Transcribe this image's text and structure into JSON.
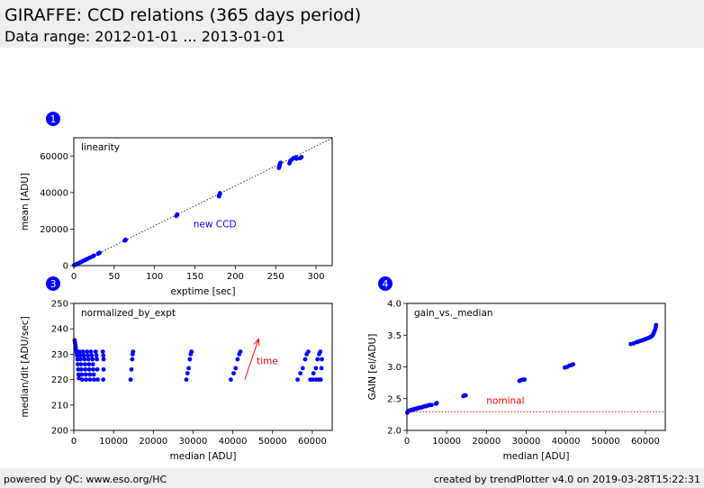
{
  "header": {
    "title": "GIRAFFE: CCD relations (365 days period)",
    "subtitle": "Data range: 2012-01-01 ... 2013-01-01"
  },
  "footer": {
    "left": "powered by QC: www.eso.org/HC",
    "right": "created by trendPlotter v4.0 on 2019-03-28T15:22:31"
  },
  "colors": {
    "points": "#0000ff",
    "annotation_red": "#ff0000",
    "badge": "#0000ff",
    "header_bg": "#eeeeee"
  },
  "chart_data": [
    {
      "id": "linearity",
      "type": "scatter",
      "badge": "1",
      "label": "linearity",
      "xlabel": "exptime [sec]",
      "ylabel": "mean [ADU]",
      "xlim": [
        0,
        320
      ],
      "ylim": [
        0,
        70000
      ],
      "xticks": [
        0,
        50,
        100,
        150,
        200,
        250,
        300
      ],
      "yticks": [
        0,
        20000,
        40000,
        60000
      ],
      "annotation": {
        "text": "new CCD",
        "x": 148,
        "y": 21000
      },
      "reference_line": {
        "x": [
          0,
          320
        ],
        "y": [
          0,
          69800
        ],
        "style": "dotted"
      },
      "points": [
        [
          0.5,
          200
        ],
        [
          1,
          300
        ],
        [
          2,
          500
        ],
        [
          3,
          700
        ],
        [
          4,
          900
        ],
        [
          5,
          1100
        ],
        [
          6,
          1300
        ],
        [
          8,
          1750
        ],
        [
          10,
          2200
        ],
        [
          12,
          2650
        ],
        [
          14,
          3050
        ],
        [
          15,
          3300
        ],
        [
          17,
          3700
        ],
        [
          20,
          4350
        ],
        [
          23,
          5000
        ],
        [
          25,
          5450
        ],
        [
          30,
          6500
        ],
        [
          32,
          7000
        ],
        [
          63,
          13700
        ],
        [
          64,
          14000
        ],
        [
          64,
          14200
        ],
        [
          127,
          27200
        ],
        [
          128,
          27700
        ],
        [
          128,
          28000
        ],
        [
          180,
          37900
        ],
        [
          180,
          38500
        ],
        [
          181,
          39200
        ],
        [
          181,
          39700
        ],
        [
          254,
          53500
        ],
        [
          255,
          54500
        ],
        [
          255,
          55500
        ],
        [
          256,
          56300
        ],
        [
          267,
          56000
        ],
        [
          268,
          57200
        ],
        [
          270,
          58000
        ],
        [
          272,
          58800
        ],
        [
          275,
          59300
        ],
        [
          276,
          58500
        ],
        [
          280,
          58800
        ],
        [
          282,
          59400
        ]
      ]
    },
    {
      "id": "normalized_by_expt",
      "type": "scatter",
      "badge": "3",
      "label": "normalized_by_expt",
      "xlabel": "median [ADU]",
      "ylabel": "median/dit [ADU/sec]",
      "xlim": [
        0,
        65000
      ],
      "ylim": [
        200,
        250
      ],
      "xticks": [
        0,
        10000,
        20000,
        30000,
        40000,
        50000,
        60000
      ],
      "yticks": [
        200,
        210,
        220,
        230,
        240,
        250
      ],
      "annotation": {
        "text": "time",
        "x": 46000,
        "y": 226
      },
      "arrow": {
        "x1": 43000,
        "y1": 220,
        "x2": 46500,
        "y2": 236
      },
      "points": [
        [
          200,
          235.5
        ],
        [
          300,
          234.5
        ],
        [
          400,
          233.5
        ],
        [
          500,
          232.5
        ],
        [
          600,
          231.5
        ],
        [
          700,
          230.5
        ],
        [
          800,
          229.5
        ],
        [
          900,
          228
        ],
        [
          1000,
          226
        ],
        [
          1100,
          224
        ],
        [
          1200,
          222
        ],
        [
          1300,
          220.5
        ],
        [
          1500,
          231
        ],
        [
          1600,
          229.5
        ],
        [
          1700,
          228
        ],
        [
          1800,
          226
        ],
        [
          1900,
          224
        ],
        [
          2000,
          222
        ],
        [
          2100,
          220
        ],
        [
          2300,
          231
        ],
        [
          2500,
          229.5
        ],
        [
          2700,
          228
        ],
        [
          2800,
          226
        ],
        [
          2900,
          224
        ],
        [
          3000,
          222
        ],
        [
          3100,
          220
        ],
        [
          3300,
          231
        ],
        [
          3500,
          229.5
        ],
        [
          3700,
          228
        ],
        [
          3800,
          226
        ],
        [
          3900,
          224
        ],
        [
          4000,
          222
        ],
        [
          4100,
          220
        ],
        [
          4300,
          231
        ],
        [
          4500,
          229.5
        ],
        [
          4700,
          228
        ],
        [
          4800,
          226
        ],
        [
          4900,
          224
        ],
        [
          5000,
          222
        ],
        [
          5100,
          220
        ],
        [
          5500,
          231
        ],
        [
          5700,
          229.5
        ],
        [
          5800,
          228
        ],
        [
          5900,
          224
        ],
        [
          6000,
          220
        ],
        [
          7300,
          231
        ],
        [
          7400,
          229.5
        ],
        [
          7500,
          228
        ],
        [
          7500,
          224
        ],
        [
          7400,
          220
        ],
        [
          14300,
          220
        ],
        [
          14500,
          224
        ],
        [
          14700,
          228
        ],
        [
          14800,
          230
        ],
        [
          14900,
          231
        ],
        [
          28300,
          220
        ],
        [
          28600,
          222.5
        ],
        [
          28900,
          224.5
        ],
        [
          29200,
          228
        ],
        [
          29400,
          230
        ],
        [
          29600,
          231
        ],
        [
          39500,
          220
        ],
        [
          40200,
          222.5
        ],
        [
          40700,
          224.5
        ],
        [
          41200,
          228
        ],
        [
          41600,
          230
        ],
        [
          41900,
          231
        ],
        [
          56300,
          220
        ],
        [
          57000,
          222.5
        ],
        [
          57600,
          224.5
        ],
        [
          58200,
          228
        ],
        [
          58600,
          230
        ],
        [
          59000,
          231
        ],
        [
          59500,
          220
        ],
        [
          60300,
          222.5
        ],
        [
          60900,
          224.5
        ],
        [
          61300,
          228
        ],
        [
          61700,
          230
        ],
        [
          62000,
          231
        ],
        [
          60200,
          220
        ],
        [
          61000,
          220
        ],
        [
          61600,
          220
        ],
        [
          62100,
          220
        ],
        [
          62300,
          224.5
        ],
        [
          62400,
          228
        ]
      ]
    },
    {
      "id": "gain_vs_median",
      "type": "scatter",
      "badge": "4",
      "label": "gain_vs._median",
      "xlabel": "median [ADU]",
      "ylabel": "GAIN [el/ADU]",
      "xlim": [
        0,
        65000
      ],
      "ylim": [
        2.0,
        4.0
      ],
      "xticks": [
        0,
        10000,
        20000,
        30000,
        40000,
        50000,
        60000
      ],
      "yticks": [
        2.0,
        2.5,
        3.0,
        3.5,
        4.0
      ],
      "annotation": {
        "text": "nominal",
        "x": 20000,
        "y": 2.42
      },
      "reference_line": {
        "x": [
          0,
          65000
        ],
        "y": [
          2.29,
          2.29
        ],
        "style": "dotted"
      },
      "points": [
        [
          100,
          2.28
        ],
        [
          200,
          2.29
        ],
        [
          300,
          2.3
        ],
        [
          500,
          2.31
        ],
        [
          700,
          2.31
        ],
        [
          1000,
          2.32
        ],
        [
          1200,
          2.32
        ],
        [
          1500,
          2.33
        ],
        [
          1800,
          2.33
        ],
        [
          2100,
          2.34
        ],
        [
          2400,
          2.34
        ],
        [
          2700,
          2.35
        ],
        [
          3000,
          2.35
        ],
        [
          3300,
          2.36
        ],
        [
          3700,
          2.36
        ],
        [
          4000,
          2.37
        ],
        [
          4400,
          2.38
        ],
        [
          4800,
          2.38
        ],
        [
          5200,
          2.39
        ],
        [
          5700,
          2.4
        ],
        [
          6200,
          2.4
        ],
        [
          7300,
          2.42
        ],
        [
          7500,
          2.43
        ],
        [
          14200,
          2.54
        ],
        [
          14500,
          2.55
        ],
        [
          14800,
          2.55
        ],
        [
          28300,
          2.78
        ],
        [
          28700,
          2.79
        ],
        [
          29200,
          2.8
        ],
        [
          29600,
          2.8
        ],
        [
          39700,
          2.99
        ],
        [
          40300,
          3.0
        ],
        [
          40900,
          3.02
        ],
        [
          41400,
          3.03
        ],
        [
          41800,
          3.04
        ],
        [
          56300,
          3.36
        ],
        [
          57000,
          3.37
        ],
        [
          57800,
          3.39
        ],
        [
          58300,
          3.4
        ],
        [
          58800,
          3.41
        ],
        [
          59300,
          3.42
        ],
        [
          59700,
          3.43
        ],
        [
          60100,
          3.44
        ],
        [
          60500,
          3.45
        ],
        [
          60900,
          3.46
        ],
        [
          61200,
          3.47
        ],
        [
          61500,
          3.48
        ],
        [
          61800,
          3.5
        ],
        [
          62000,
          3.52
        ],
        [
          62200,
          3.55
        ],
        [
          62400,
          3.58
        ],
        [
          62600,
          3.62
        ],
        [
          62700,
          3.66
        ]
      ]
    }
  ]
}
